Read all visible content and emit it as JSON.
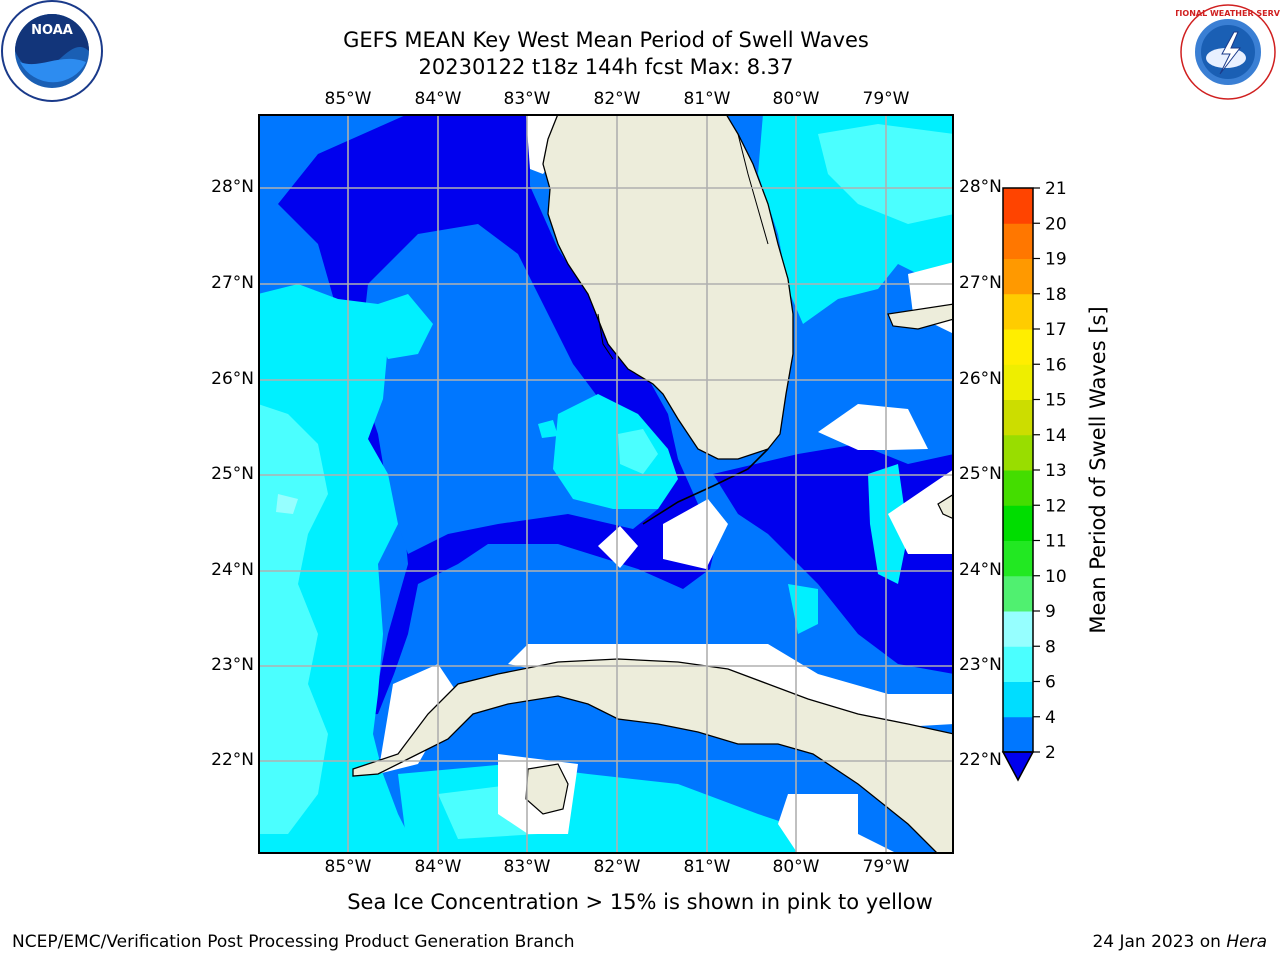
{
  "header": {
    "title_line1": "GEFS MEAN Key West Mean Period of Swell Waves",
    "title_line2": "20230122 t18z 144h fcst   Max: 8.37"
  },
  "map": {
    "lon_ticks": [
      "85°W",
      "84°W",
      "83°W",
      "82°W",
      "81°W",
      "80°W",
      "79°W"
    ],
    "lat_ticks": [
      "28°N",
      "27°N",
      "26°N",
      "25°N",
      "24°N",
      "23°N",
      "22°N"
    ],
    "colors": {
      "ocean_base": "#0077ff",
      "land": "#ededdb",
      "no_data": "#ffffff",
      "grid": "#b0b0b0"
    }
  },
  "colorbar": {
    "label": "Mean Period of Swell Waves [s]",
    "ticks": [
      "2",
      "4",
      "6",
      "8",
      "9",
      "10",
      "11",
      "12",
      "13",
      "14",
      "15",
      "16",
      "17",
      "18",
      "19",
      "20",
      "21"
    ],
    "colors": [
      "#0077ff",
      "#00c8ff",
      "#00f0ff",
      "#4bffff",
      "#96ffff",
      "#50f070",
      "#18e818",
      "#00dd00",
      "#50dd00",
      "#99dd00",
      "#ccdd00",
      "#eeee00",
      "#ffff00",
      "#ffdd00",
      "#ffbb00",
      "#ff9900",
      "#ff7700",
      "#ff5500",
      "#ff3300",
      "#ff1100"
    ],
    "under_color": "#0000ee"
  },
  "footer": {
    "note": "Sea Ice Concentration > 15% is shown in pink to yellow",
    "credit": "NCEP/EMC/Verification Post Processing Product Generation Branch",
    "date_prefix": "24 Jan 2023 on ",
    "date_host": "Hera"
  },
  "logos": {
    "noaa_text": "NOAA",
    "nws_text": "NATIONAL WEATHER SERVICE"
  }
}
